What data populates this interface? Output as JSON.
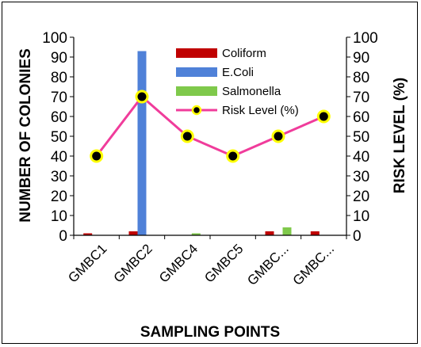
{
  "chart_data": {
    "type": "bar",
    "categories": [
      "GMBC1",
      "GMBC2",
      "GMBC4",
      "GMBC5",
      "GMBC...",
      "GMBC..."
    ],
    "series": [
      {
        "name": "Coliform",
        "kind": "bar",
        "axis": "left",
        "color": "#c00000",
        "values": [
          1,
          2,
          0,
          0,
          2,
          2
        ]
      },
      {
        "name": "E.Coli",
        "kind": "bar",
        "axis": "left",
        "color": "#4f81d8",
        "values": [
          0,
          93,
          0,
          0,
          0,
          0
        ]
      },
      {
        "name": "Salmonella",
        "kind": "bar",
        "axis": "left",
        "color": "#7fc94b",
        "values": [
          0,
          0,
          1,
          0,
          4,
          0
        ]
      },
      {
        "name": "Risk Level (%)",
        "kind": "line",
        "axis": "right",
        "color": "#f03c9b",
        "marker_fill": "#000000",
        "marker_edge": "#ffff00",
        "values": [
          40,
          70,
          50,
          40,
          50,
          60
        ]
      }
    ],
    "xlabel": "SAMPLING POINTS",
    "ylabel": "NUMBER OF COLONIES",
    "y2label": "RISK LEVEL (%)",
    "ylim": [
      0,
      100
    ],
    "y2lim": [
      0,
      100
    ],
    "yticks": [
      "0",
      "10",
      "20",
      "30",
      "40",
      "50",
      "60",
      "70",
      "80",
      "90",
      "100"
    ],
    "y2ticks": [
      "0",
      "10",
      "20",
      "30",
      "40",
      "50",
      "60",
      "70",
      "80",
      "90",
      "100"
    ],
    "grid": false,
    "legend": "top-center"
  }
}
